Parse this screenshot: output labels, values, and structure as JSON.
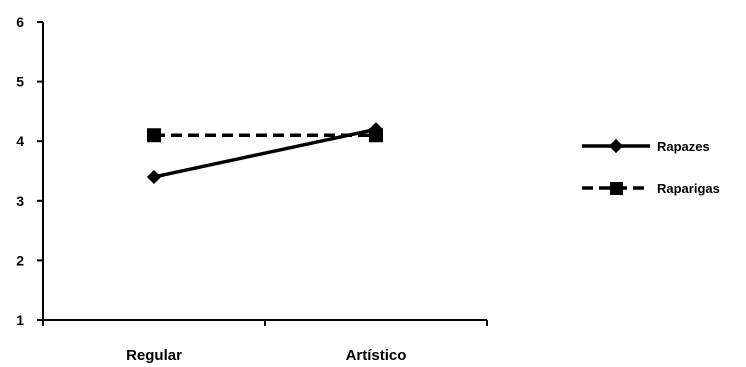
{
  "chart_data": {
    "type": "line",
    "categories": [
      "Regular",
      "Artístico"
    ],
    "ylim": [
      1,
      6
    ],
    "yticks": [
      "1",
      "2",
      "3",
      "4",
      "5",
      "6"
    ],
    "grid": false,
    "legend_position": "right",
    "series": [
      {
        "name": "Rapazes",
        "values": [
          3.4,
          4.2
        ],
        "line_style": "solid",
        "marker": "diamond",
        "color": "#000000"
      },
      {
        "name": "Raparigas",
        "values": [
          4.1,
          4.1
        ],
        "line_style": "dashed",
        "marker": "square",
        "color": "#000000"
      }
    ]
  }
}
